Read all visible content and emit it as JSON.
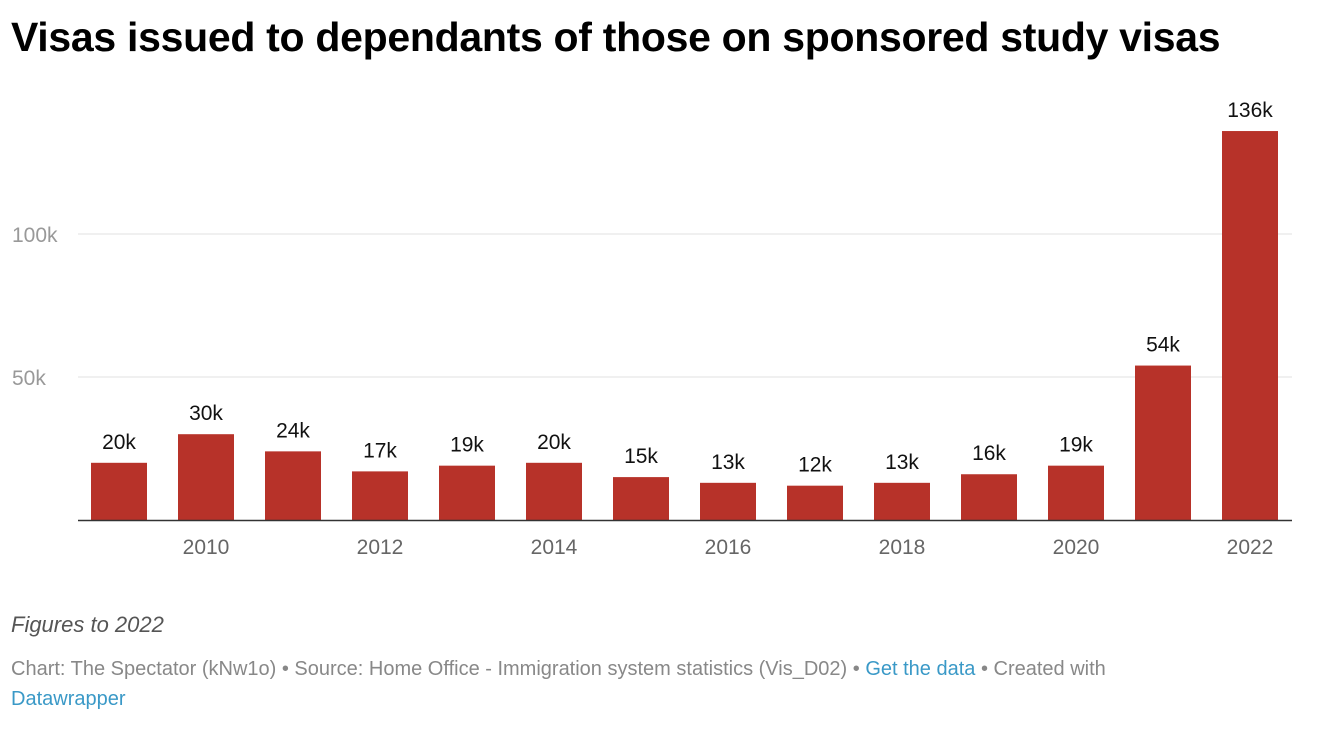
{
  "title": "Visas issued to dependants of those on sponsored study visas",
  "note": "Figures to 2022",
  "footer": {
    "chart_credit": "Chart: The Spectator (kNw1o)",
    "sep": " • ",
    "source": "Source: Home Office - Immigration system statistics (Vis_D02)",
    "get_data": "Get the data",
    "created_with": "Created with",
    "datawrapper": "Datawrapper"
  },
  "colors": {
    "bar": "#b73229",
    "grid": "#e0e0e0",
    "axis": "#333333",
    "tick": "#999999"
  },
  "chart_data": {
    "type": "bar",
    "title": "Visas issued to dependants of those on sponsored study visas",
    "categories": [
      "2009",
      "2010",
      "2011",
      "2012",
      "2013",
      "2014",
      "2015",
      "2016",
      "2017",
      "2018",
      "2019",
      "2020",
      "2021",
      "2022"
    ],
    "values": [
      20000,
      30000,
      24000,
      17000,
      19000,
      20000,
      15000,
      13000,
      12000,
      13000,
      16000,
      19000,
      54000,
      136000
    ],
    "data_labels": [
      "20k",
      "30k",
      "24k",
      "17k",
      "19k",
      "20k",
      "15k",
      "13k",
      "12k",
      "13k",
      "16k",
      "19k",
      "54k",
      "136k"
    ],
    "x_tick_labels": [
      "2010",
      "2012",
      "2014",
      "2016",
      "2018",
      "2020",
      "2022"
    ],
    "y_ticks": [
      50000,
      100000
    ],
    "y_tick_labels": [
      "50k",
      "100k"
    ],
    "ylim": [
      0,
      140000
    ],
    "xlabel": "",
    "ylabel": "",
    "grid": true
  }
}
